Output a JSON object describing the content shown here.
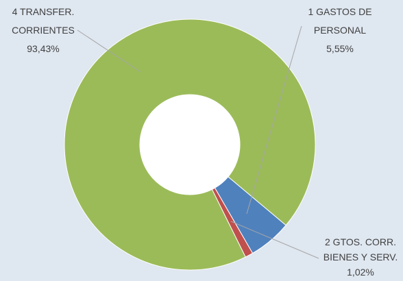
{
  "chart_data": {
    "type": "donut",
    "categories": [
      "1 GASTOS DE PERSONAL",
      "2 GTOS. CORR. BIENES Y SERV.",
      "4 TRANSFER. CORRIENTES"
    ],
    "values": [
      5.55,
      1.02,
      93.43
    ],
    "value_labels": [
      "5,55%",
      "1,02%",
      "93,43%"
    ],
    "colors": [
      "#4f81bd",
      "#c0504d",
      "#9bbb59"
    ]
  }
}
